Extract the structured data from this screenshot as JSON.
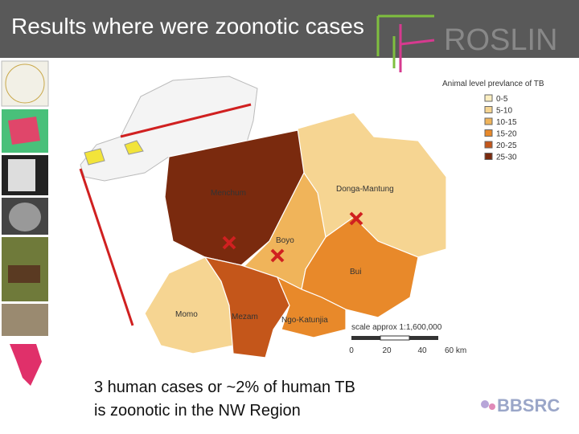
{
  "header": {
    "title": "Results where were zoonotic cases",
    "logo": "ROSLIN"
  },
  "legend": {
    "title": "Animal level prevlance of TB",
    "items": [
      {
        "label": "0-5",
        "color": "#fbeec0"
      },
      {
        "label": "5-10",
        "color": "#f6d592"
      },
      {
        "label": "10-15",
        "color": "#f0b45a"
      },
      {
        "label": "15-20",
        "color": "#e8892a"
      },
      {
        "label": "20-25",
        "color": "#c4561a"
      },
      {
        "label": "25-30",
        "color": "#7a2a0e"
      }
    ]
  },
  "map": {
    "regions": [
      "Menchum",
      "Donga-Mantung",
      "Boyo",
      "Bui",
      "Momo",
      "Mezam",
      "Ngo-Katunjia"
    ],
    "scale": {
      "label": "scale approx 1:1,600,000",
      "ticks": [
        "0",
        "20",
        "40",
        "60 km"
      ]
    }
  },
  "caption": {
    "lines": [
      "3 human cases or ~2% of human TB",
      "is zoonotic in the NW Region"
    ]
  },
  "footer": {
    "logo": "BBSRC"
  }
}
